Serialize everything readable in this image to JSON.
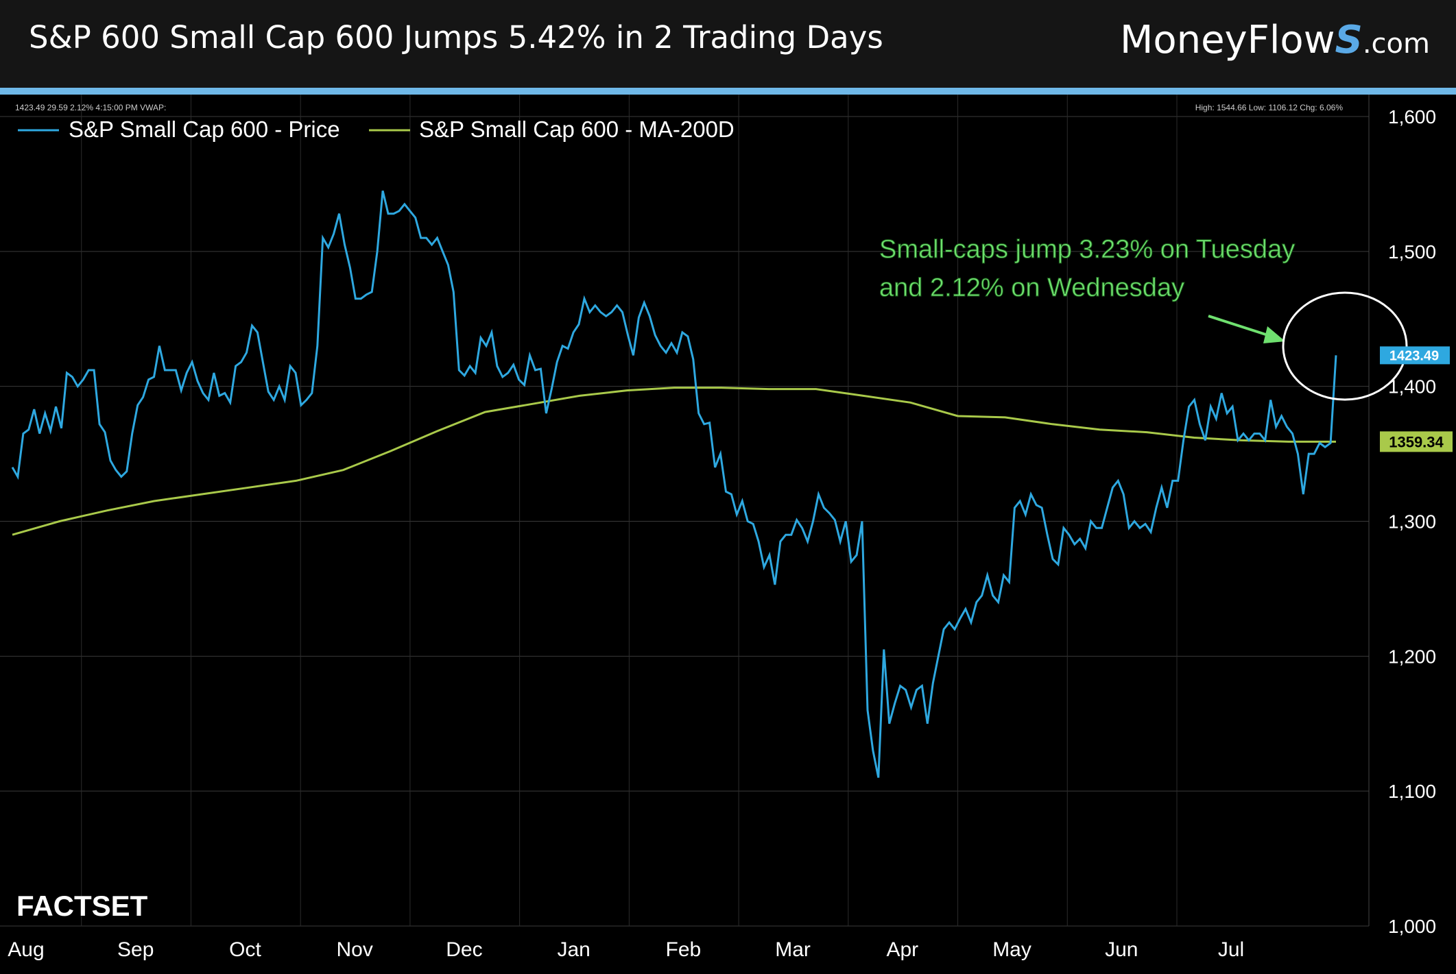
{
  "header": {
    "title": "S&P 600 Small Cap 600 Jumps 5.42% in 2 Trading Days",
    "brand_main": "MoneyFlow",
    "brand_s": "S",
    "brand_suffix": ".com"
  },
  "info_left": "1423.49 29.59 2.12% 4:15:00 PM VWAP:",
  "info_right": "High: 1544.66 Low: 1106.12 Chg: 6.06%",
  "logo": "FACTSET",
  "annotation": {
    "line1": "Small-caps jump 3.23% on Tuesday",
    "line2": "and 2.12% on Wednesday"
  },
  "chart_data": {
    "type": "line",
    "ylim": [
      1000,
      1600
    ],
    "yticks": [
      1000,
      1100,
      1200,
      1300,
      1400,
      1500,
      1600
    ],
    "ytick_labels": [
      "1,000",
      "1,100",
      "1,200",
      "1,300",
      "1,400",
      "1,500",
      "1,600"
    ],
    "xticks": [
      "Aug",
      "Sep",
      "Oct",
      "Nov",
      "Dec",
      "Jan",
      "Feb",
      "Mar",
      "Apr",
      "May",
      "Jun",
      "Jul"
    ],
    "grid": true,
    "legend_position": "top-left",
    "series": [
      {
        "name": "S&P Small Cap 600 - Price",
        "color": "#2ea8e0",
        "last_label": "1423.49",
        "values": [
          1340,
          1333,
          1365,
          1368,
          1383,
          1365,
          1380,
          1367,
          1385,
          1369,
          1410,
          1407,
          1400,
          1405,
          1412,
          1412,
          1372,
          1366,
          1345,
          1338,
          1333,
          1337,
          1365,
          1386,
          1392,
          1405,
          1407,
          1430,
          1412,
          1412,
          1412,
          1397,
          1410,
          1418,
          1404,
          1395,
          1390,
          1410,
          1393,
          1395,
          1388,
          1415,
          1418,
          1425,
          1445,
          1440,
          1418,
          1396,
          1390,
          1400,
          1390,
          1415,
          1410,
          1386,
          1390,
          1395,
          1430,
          1510,
          1503,
          1513,
          1528,
          1505,
          1488,
          1465,
          1465,
          1468,
          1470,
          1500,
          1545,
          1528,
          1528,
          1530,
          1535,
          1530,
          1525,
          1510,
          1510,
          1505,
          1510,
          1500,
          1490,
          1470,
          1412,
          1408,
          1415,
          1410,
          1436,
          1430,
          1440,
          1415,
          1407,
          1410,
          1416,
          1405,
          1401,
          1423,
          1412,
          1413,
          1380,
          1398,
          1418,
          1430,
          1428,
          1440,
          1446,
          1465,
          1455,
          1460,
          1455,
          1452,
          1455,
          1460,
          1455,
          1438,
          1423,
          1451,
          1462,
          1452,
          1438,
          1430,
          1425,
          1432,
          1425,
          1440,
          1437,
          1420,
          1380,
          1372,
          1373,
          1340,
          1350,
          1322,
          1320,
          1305,
          1315,
          1300,
          1298,
          1285,
          1266,
          1275,
          1253,
          1285,
          1290,
          1290,
          1301,
          1295,
          1285,
          1300,
          1320,
          1310,
          1306,
          1301,
          1285,
          1300,
          1270,
          1275,
          1300,
          1160,
          1130,
          1110,
          1205,
          1150,
          1165,
          1178,
          1175,
          1162,
          1175,
          1178,
          1150,
          1180,
          1200,
          1220,
          1225,
          1220,
          1228,
          1235,
          1225,
          1240,
          1245,
          1260,
          1245,
          1240,
          1260,
          1255,
          1310,
          1315,
          1305,
          1320,
          1312,
          1310,
          1290,
          1272,
          1268,
          1295,
          1290,
          1283,
          1287,
          1280,
          1300,
          1295,
          1295,
          1310,
          1325,
          1330,
          1320,
          1295,
          1300,
          1295,
          1298,
          1292,
          1310,
          1325,
          1310,
          1330,
          1330,
          1360,
          1385,
          1390,
          1372,
          1360,
          1385,
          1376,
          1395,
          1380,
          1385,
          1360,
          1365,
          1360,
          1365,
          1365,
          1360,
          1390,
          1370,
          1378,
          1370,
          1365,
          1350,
          1320,
          1350,
          1350,
          1358,
          1355,
          1358,
          1423
        ]
      },
      {
        "name": "S&P Small Cap 600 - MA-200D",
        "color": "#a9c94a",
        "last_label": "1359.34",
        "values": [
          1290,
          1300,
          1308,
          1315,
          1320,
          1325,
          1330,
          1338,
          1352,
          1367,
          1381,
          1387,
          1393,
          1397,
          1399,
          1399,
          1398,
          1398,
          1393,
          1388,
          1378,
          1377,
          1372,
          1368,
          1366,
          1362,
          1360,
          1359,
          1359
        ]
      }
    ]
  }
}
